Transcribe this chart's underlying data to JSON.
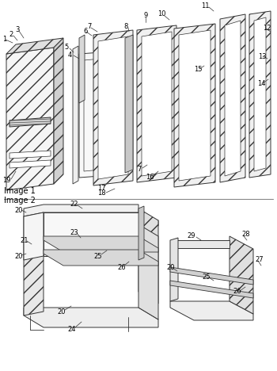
{
  "bg_color": "#ffffff",
  "line_color": "#333333",
  "image1_label": "Image 1",
  "image2_label": "Image 2",
  "fig_width": 3.5,
  "fig_height": 4.68,
  "dpi": 100
}
